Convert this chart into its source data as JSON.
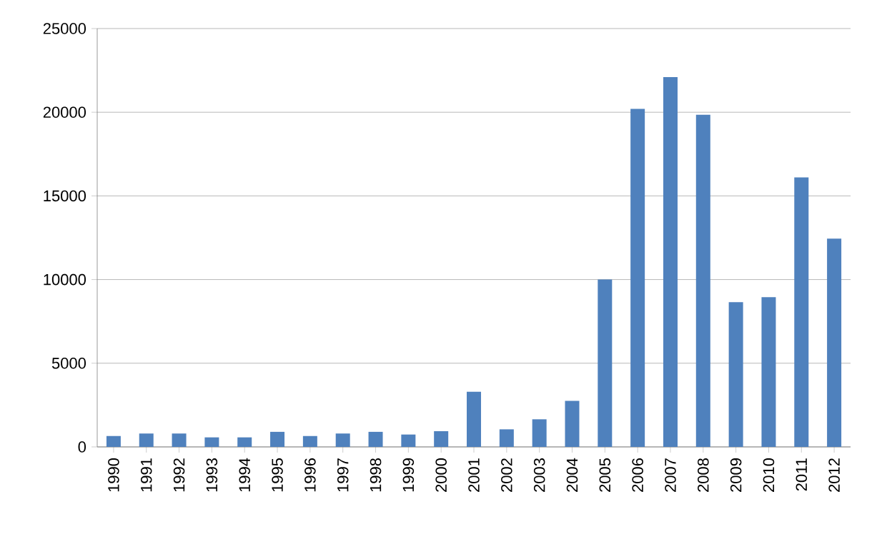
{
  "chart_data": {
    "type": "bar",
    "categories": [
      "1990",
      "1991",
      "1992",
      "1993",
      "1994",
      "1995",
      "1996",
      "1997",
      "1998",
      "1999",
      "2000",
      "2001",
      "2002",
      "2003",
      "2004",
      "2005",
      "2006",
      "2007",
      "2008",
      "2009",
      "2010",
      "2011",
      "2012"
    ],
    "values": [
      650,
      800,
      800,
      570,
      570,
      900,
      650,
      800,
      900,
      740,
      940,
      3300,
      1050,
      1650,
      2750,
      10000,
      20200,
      22100,
      19850,
      8650,
      8950,
      16100,
      12450
    ],
    "color": "#4f81bd",
    "ylim": [
      0,
      25000
    ],
    "yticks": [
      0,
      5000,
      10000,
      15000,
      20000,
      25000
    ],
    "grid": "y"
  }
}
